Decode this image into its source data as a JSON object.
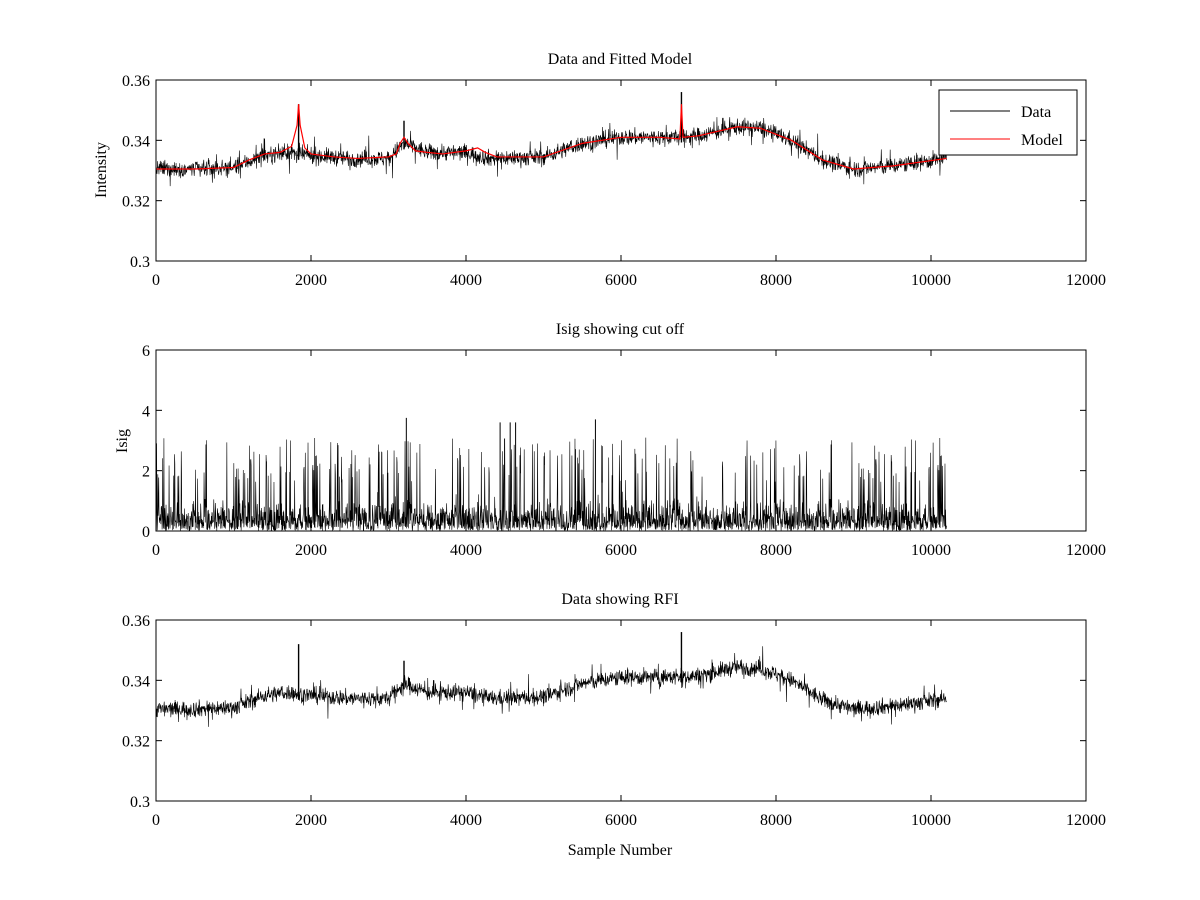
{
  "figure": {
    "background": "#ffffff",
    "data_color": "#000000",
    "model_color": "#ff0000"
  },
  "chart_data": [
    {
      "type": "line",
      "title": "Data and Fitted Model",
      "xlabel": "",
      "ylabel": "Intensity",
      "xlim": [
        0,
        12000
      ],
      "ylim": [
        0.3,
        0.36
      ],
      "xticks": [
        0,
        2000,
        4000,
        6000,
        8000,
        10000,
        12000
      ],
      "yticks": [
        0.3,
        0.32,
        0.34,
        0.36
      ],
      "xtick_labels": [
        "0",
        "2000",
        "4000",
        "6000",
        "8000",
        "10000",
        "12000"
      ],
      "ytick_labels": [
        "0.3",
        "0.32",
        "0.34",
        "0.36"
      ],
      "legend": {
        "position": "top-right",
        "entries": [
          "Data",
          "Model"
        ]
      },
      "series": [
        {
          "name": "Data",
          "color": "#000000",
          "kind": "noisy band around baseline",
          "x_range": [
            0,
            10200
          ],
          "noise_amplitude": 0.0045,
          "baseline_x": [
            0,
            500,
            1000,
            1400,
            1700,
            2000,
            2500,
            3000,
            3200,
            3500,
            4000,
            4300,
            5000,
            5500,
            6000,
            6500,
            7000,
            7500,
            7800,
            8200,
            8600,
            9000,
            9500,
            10200
          ],
          "baseline_y": [
            0.3305,
            0.3305,
            0.331,
            0.335,
            0.336,
            0.335,
            0.334,
            0.334,
            0.339,
            0.336,
            0.336,
            0.334,
            0.3345,
            0.339,
            0.341,
            0.341,
            0.3415,
            0.3445,
            0.344,
            0.34,
            0.3335,
            0.3305,
            0.3315,
            0.334
          ],
          "spikes_x": [
            1840,
            3200,
            6780
          ],
          "spikes_y": [
            0.352,
            0.3465,
            0.356
          ]
        },
        {
          "name": "Model",
          "color": "#ff0000",
          "kind": "fitted curve",
          "x": [
            0,
            500,
            1000,
            1200,
            1400,
            1600,
            1750,
            1820,
            1840,
            1860,
            1920,
            2000,
            2300,
            2600,
            3000,
            3100,
            3150,
            3200,
            3250,
            3350,
            3500,
            3700,
            4000,
            4150,
            4250,
            4400,
            5000,
            5500,
            6000,
            6500,
            6760,
            6780,
            6800,
            7000,
            7500,
            7800,
            8200,
            8600,
            9000,
            9500,
            10200
          ],
          "y": [
            0.3305,
            0.3305,
            0.331,
            0.3335,
            0.3355,
            0.336,
            0.338,
            0.345,
            0.352,
            0.345,
            0.3375,
            0.3355,
            0.3345,
            0.334,
            0.3345,
            0.3355,
            0.339,
            0.341,
            0.339,
            0.3365,
            0.336,
            0.3355,
            0.3365,
            0.3375,
            0.336,
            0.3345,
            0.3345,
            0.339,
            0.341,
            0.341,
            0.3405,
            0.352,
            0.341,
            0.3415,
            0.3445,
            0.344,
            0.34,
            0.3335,
            0.3305,
            0.3315,
            0.334
          ]
        }
      ]
    },
    {
      "type": "line",
      "title": "Isig showing cut off",
      "xlabel": "",
      "ylabel": "Isig",
      "xlim": [
        0,
        12000
      ],
      "ylim": [
        0,
        6
      ],
      "xticks": [
        0,
        2000,
        4000,
        6000,
        8000,
        10000,
        12000
      ],
      "yticks": [
        0,
        2,
        4,
        6
      ],
      "xtick_labels": [
        "0",
        "2000",
        "4000",
        "6000",
        "8000",
        "10000",
        "12000"
      ],
      "ytick_labels": [
        "0",
        "2",
        "4",
        "6"
      ],
      "series": [
        {
          "name": "Isig",
          "color": "#000000",
          "kind": "noisy non-negative signal",
          "x_range": [
            0,
            10200
          ],
          "typical_max": 2.5,
          "peaks_x": [
            3230,
            4440,
            4570,
            4640,
            5670
          ],
          "peaks_y": [
            3.75,
            3.6,
            3.6,
            3.6,
            3.7
          ]
        }
      ]
    },
    {
      "type": "line",
      "title": "Data showing RFI",
      "xlabel": "Sample Number",
      "ylabel": "",
      "xlim": [
        0,
        12000
      ],
      "ylim": [
        0.3,
        0.36
      ],
      "xticks": [
        0,
        2000,
        4000,
        6000,
        8000,
        10000,
        12000
      ],
      "yticks": [
        0.3,
        0.32,
        0.34,
        0.36
      ],
      "xtick_labels": [
        "0",
        "2000",
        "4000",
        "6000",
        "8000",
        "10000",
        "12000"
      ],
      "ytick_labels": [
        "0.3",
        "0.32",
        "0.34",
        "0.36"
      ],
      "series": [
        {
          "name": "Data",
          "color": "#000000",
          "kind": "noisy band around baseline",
          "x_range": [
            0,
            10200
          ],
          "noise_amplitude": 0.0045,
          "baseline_x": [
            0,
            500,
            1000,
            1400,
            1700,
            2000,
            2500,
            3000,
            3200,
            3500,
            4000,
            4300,
            5000,
            5500,
            6000,
            6500,
            7000,
            7500,
            7800,
            8200,
            8600,
            9000,
            9500,
            10200
          ],
          "baseline_y": [
            0.3305,
            0.3305,
            0.331,
            0.335,
            0.336,
            0.335,
            0.334,
            0.334,
            0.339,
            0.336,
            0.336,
            0.334,
            0.3345,
            0.339,
            0.341,
            0.341,
            0.3415,
            0.3445,
            0.344,
            0.34,
            0.3335,
            0.3305,
            0.3315,
            0.334
          ],
          "spikes_x": [
            1840,
            3200,
            6780
          ],
          "spikes_y": [
            0.352,
            0.3465,
            0.356
          ]
        }
      ]
    }
  ]
}
